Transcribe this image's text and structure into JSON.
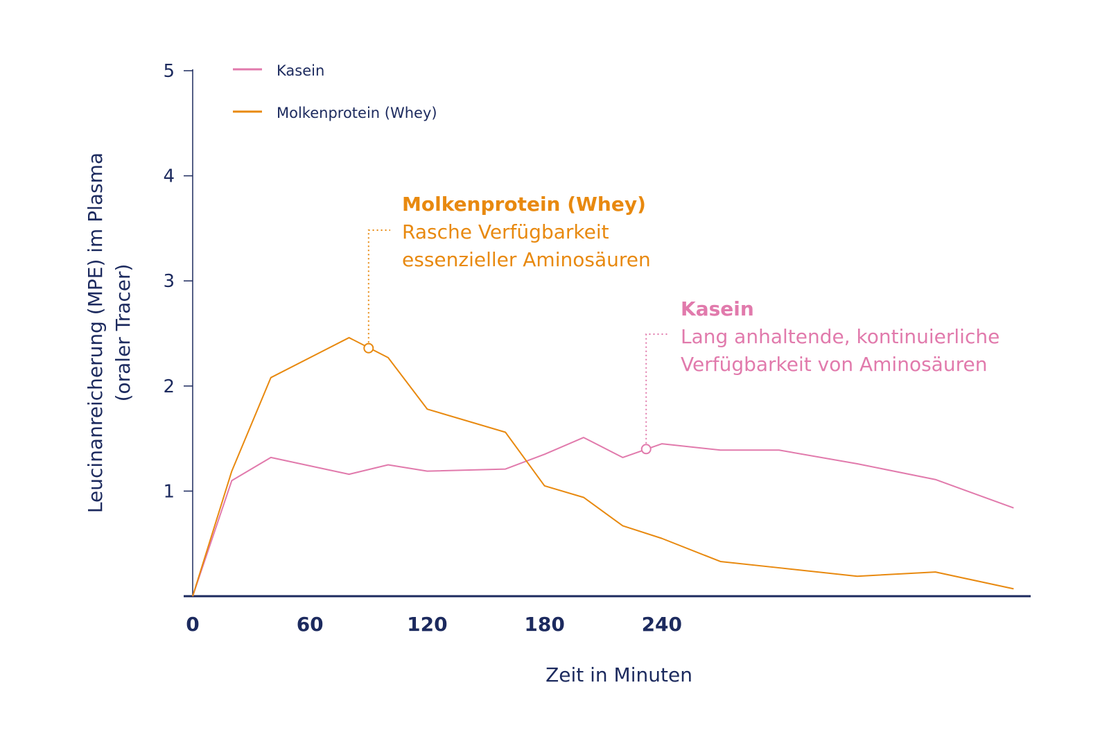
{
  "colors": {
    "axis": "#1c2a5e",
    "text": "#1c2a5e",
    "whey": "#e8890f",
    "kasein": "#e17aac"
  },
  "chart_data": {
    "type": "line",
    "xlabel": "Zeit in Minuten",
    "ylabel_line1": "Leucinanreicherung (MPE) im Plasma",
    "ylabel_line2": "(oraler Tracer)",
    "xlim": [
      0,
      420
    ],
    "ylim": [
      0,
      5
    ],
    "xticks": [
      0,
      60,
      120,
      180,
      240
    ],
    "xtick_labels": [
      "0",
      "60",
      "120",
      "180",
      "240"
    ],
    "yticks": [
      1,
      2,
      3,
      4,
      5
    ],
    "ytick_labels": [
      "1",
      "2",
      "3",
      "4",
      "5"
    ],
    "legend": {
      "placement": "top-left",
      "items": [
        {
          "label": "Kasein",
          "series": "kasein"
        },
        {
          "label": "Molkenprotein (Whey)",
          "series": "whey"
        }
      ]
    },
    "series": [
      {
        "key": "kasein",
        "name": "Kasein",
        "x": [
          0,
          20,
          40,
          80,
          100,
          120,
          160,
          180,
          200,
          220,
          240,
          270,
          300,
          340,
          380,
          420
        ],
        "y": [
          0,
          1.1,
          1.32,
          1.16,
          1.25,
          1.19,
          1.21,
          1.35,
          1.51,
          1.32,
          1.45,
          1.39,
          1.39,
          1.26,
          1.11,
          0.84
        ]
      },
      {
        "key": "whey",
        "name": "Molkenprotein (Whey)",
        "x": [
          0,
          20,
          40,
          80,
          100,
          120,
          160,
          180,
          200,
          220,
          240,
          270,
          300,
          340,
          380,
          420
        ],
        "y": [
          0,
          1.19,
          2.08,
          2.46,
          2.27,
          1.78,
          1.56,
          1.05,
          0.94,
          0.67,
          0.55,
          0.33,
          0.27,
          0.19,
          0.23,
          0.07
        ]
      }
    ],
    "annotations": [
      {
        "series": "whey",
        "x": 90,
        "y": 2.36,
        "title": "Molkenprotein (Whey)",
        "line1": "Rasche Verfügbarkeit",
        "line2": "essenzieller Aminosäuren"
      },
      {
        "series": "kasein",
        "x": 232,
        "y": 1.4,
        "title": "Kasein",
        "line1": "Lang anhaltende, kontinuierliche",
        "line2": "Verfügbarkeit von Aminosäuren"
      }
    ]
  }
}
